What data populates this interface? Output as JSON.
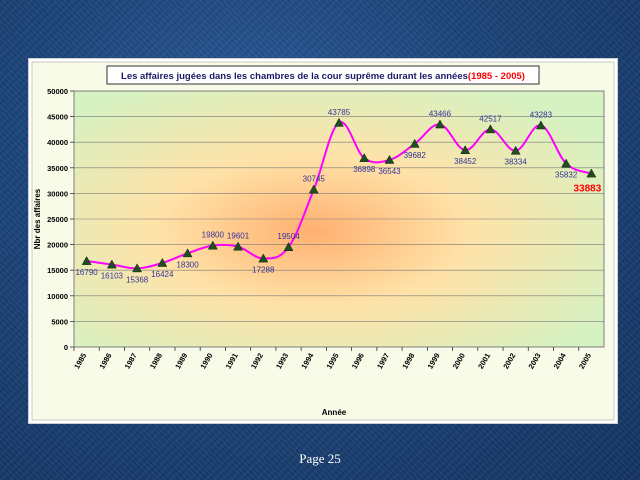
{
  "footer": {
    "page_label": "Page 25"
  },
  "chart_data": {
    "type": "line",
    "title_main": "Les affaires jugées dans les chambres de la cour suprême durant les années",
    "title_range": "(1985 - 2005)",
    "xlabel": "Année",
    "ylabel": "Nbr des affaires",
    "categories": [
      "1985",
      "1986",
      "1987",
      "1988",
      "1989",
      "1990",
      "1991",
      "1992",
      "1993",
      "1994",
      "1995",
      "1996",
      "1997",
      "1998",
      "1999",
      "2000",
      "2001",
      "2002",
      "2003",
      "2004",
      "2005"
    ],
    "values": [
      16790,
      16103,
      15368,
      16424,
      18300,
      19800,
      19601,
      17288,
      19504,
      30745,
      43785,
      36898,
      36543,
      39682,
      43466,
      38452,
      42517,
      38334,
      43283,
      35832,
      33883
    ],
    "ylim": [
      0,
      50000
    ],
    "yticks": [
      "0",
      "5000",
      "10000",
      "15000",
      "20000",
      "25000",
      "30000",
      "35000",
      "40000",
      "45000",
      "50000"
    ],
    "grid": true,
    "line_color": "#ff00ff",
    "marker_color": "#1f4d1f",
    "label_color": "#333399",
    "highlight_label_color": "#ff0000",
    "title_range_color": "#ff0000"
  }
}
